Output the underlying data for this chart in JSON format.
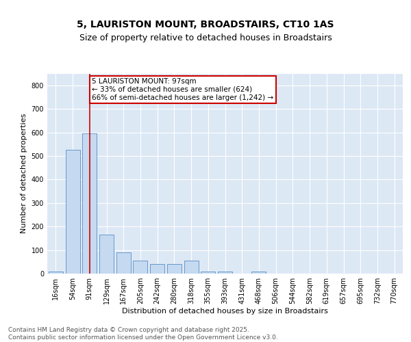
{
  "title_line1": "5, LAURISTON MOUNT, BROADSTAIRS, CT10 1AS",
  "title_line2": "Size of property relative to detached houses in Broadstairs",
  "xlabel": "Distribution of detached houses by size in Broadstairs",
  "ylabel": "Number of detached properties",
  "categories": [
    "16sqm",
    "54sqm",
    "91sqm",
    "129sqm",
    "167sqm",
    "205sqm",
    "242sqm",
    "280sqm",
    "318sqm",
    "355sqm",
    "393sqm",
    "431sqm",
    "468sqm",
    "506sqm",
    "544sqm",
    "582sqm",
    "619sqm",
    "657sqm",
    "695sqm",
    "732sqm",
    "770sqm"
  ],
  "values": [
    10,
    527,
    595,
    165,
    90,
    55,
    40,
    40,
    55,
    10,
    10,
    0,
    10,
    0,
    0,
    0,
    0,
    0,
    0,
    0,
    0
  ],
  "bar_color": "#c5d9f0",
  "bar_edgecolor": "#6699cc",
  "vline_x_idx": 2,
  "vline_color": "#cc0000",
  "annotation_text": "5 LAURISTON MOUNT: 97sqm\n← 33% of detached houses are smaller (624)\n66% of semi-detached houses are larger (1,242) →",
  "annotation_box_edgecolor": "#cc0000",
  "annotation_box_facecolor": "#ffffff",
  "ylim": [
    0,
    850
  ],
  "yticks": [
    0,
    100,
    200,
    300,
    400,
    500,
    600,
    700,
    800
  ],
  "background_color": "#dde8f5",
  "grid_color": "#c0cfe0",
  "footer_text": "Contains HM Land Registry data © Crown copyright and database right 2025.\nContains public sector information licensed under the Open Government Licence v3.0.",
  "title_fontsize": 10,
  "subtitle_fontsize": 9,
  "axis_label_fontsize": 8,
  "tick_fontsize": 7,
  "annotation_fontsize": 7.5,
  "footer_fontsize": 6.5
}
